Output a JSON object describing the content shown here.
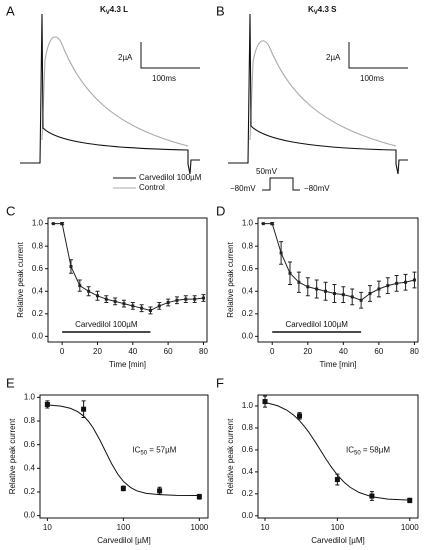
{
  "top_panels": [
    {
      "label": "A",
      "title": {
        "main": "K",
        "sub": "V",
        "rest": "4.3 L"
      },
      "scale_y": "2µA",
      "scale_x": "100ms"
    },
    {
      "label": "B",
      "title": {
        "main": "K",
        "sub": "V",
        "rest": "4.3 S"
      },
      "scale_y": "2µA",
      "scale_x": "100ms"
    }
  ],
  "legend": [
    "Carvedilol 100µM",
    "Control"
  ],
  "protocol": [
    "50mV",
    "−80mV",
    "−80mV"
  ],
  "chart_data": [
    {
      "type": "line",
      "panel": "C",
      "x_label": "Time [min]",
      "y_label": "Relative peak current",
      "x": [
        -5,
        0,
        5,
        10,
        15,
        20,
        25,
        30,
        35,
        40,
        45,
        50,
        55,
        60,
        65,
        70,
        75,
        80
      ],
      "values": [
        1.0,
        1.0,
        0.62,
        0.45,
        0.4,
        0.36,
        0.33,
        0.31,
        0.29,
        0.27,
        0.25,
        0.23,
        0.27,
        0.3,
        0.32,
        0.33,
        0.33,
        0.34
      ],
      "errors": [
        0,
        0.01,
        0.06,
        0.05,
        0.04,
        0.04,
        0.03,
        0.03,
        0.03,
        0.03,
        0.03,
        0.03,
        0.03,
        0.03,
        0.03,
        0.03,
        0.03,
        0.03
      ],
      "color": "#222222",
      "xlim": [
        -8,
        82
      ],
      "xticks": [
        0,
        20,
        40,
        60,
        80
      ],
      "ylim": [
        -0.05,
        1.05
      ],
      "yticks": [
        {
          "value": 0,
          "label": "0.0"
        },
        0.2,
        0.4,
        0.6,
        0.8,
        {
          "value": 1,
          "label": "1.0"
        }
      ],
      "application": {
        "label": "Carvedilol 100µM",
        "start": 0,
        "end": 50
      }
    },
    {
      "type": "line",
      "panel": "D",
      "x_label": "Time [min]",
      "y_label": "Relative peak current",
      "x": [
        -5,
        0,
        5,
        10,
        15,
        20,
        25,
        30,
        35,
        40,
        45,
        50,
        55,
        60,
        65,
        70,
        75,
        80
      ],
      "values": [
        1.0,
        1.0,
        0.74,
        0.56,
        0.48,
        0.44,
        0.42,
        0.4,
        0.38,
        0.37,
        0.35,
        0.32,
        0.38,
        0.42,
        0.45,
        0.47,
        0.48,
        0.5
      ],
      "errors": [
        0,
        0.01,
        0.1,
        0.1,
        0.09,
        0.08,
        0.08,
        0.08,
        0.08,
        0.07,
        0.07,
        0.07,
        0.07,
        0.07,
        0.07,
        0.07,
        0.07,
        0.07
      ],
      "color": "#222222",
      "xlim": [
        -8,
        82
      ],
      "xticks": [
        0,
        20,
        40,
        60,
        80
      ],
      "ylim": [
        -0.05,
        1.05
      ],
      "yticks": [
        {
          "value": 0,
          "label": "0.0"
        },
        0.2,
        0.4,
        0.6,
        0.8,
        {
          "value": 1,
          "label": "1.0"
        }
      ],
      "application": {
        "label": "Carvedilol 100µM",
        "start": 0,
        "end": 50
      }
    },
    {
      "type": "dose",
      "panel": "E",
      "x_label": "Carvedilol [µM]",
      "y_label": "Relative peak current",
      "log_x": true,
      "x": [
        10,
        30,
        100,
        300,
        1000
      ],
      "values": [
        0.94,
        0.9,
        0.23,
        0.21,
        0.16
      ],
      "errors": [
        0.03,
        0.07,
        0.02,
        0.03,
        0.02
      ],
      "fit": {
        "x": [
          10,
          15,
          20,
          25,
          30,
          35,
          40,
          50,
          57,
          70,
          85,
          100,
          125,
          150,
          200,
          300,
          500,
          1000
        ],
        "values": [
          0.936,
          0.926,
          0.908,
          0.88,
          0.842,
          0.795,
          0.742,
          0.63,
          0.555,
          0.44,
          0.348,
          0.29,
          0.237,
          0.21,
          0.188,
          0.178,
          0.171,
          0.17
        ]
      },
      "annotation": {
        "main": "IC",
        "sub": "50",
        "rest": " = 57µM"
      },
      "color": "#111111",
      "xlim": [
        8,
        1300
      ],
      "xticks": [
        10,
        100,
        1000
      ],
      "ylim": [
        -0.02,
        1.02
      ],
      "yticks": [
        {
          "value": 0,
          "label": "0.0"
        },
        0.2,
        0.4,
        0.6,
        0.8,
        {
          "value": 1,
          "label": "1.0"
        }
      ]
    },
    {
      "type": "dose",
      "panel": "F",
      "x_label": "Carvedilol [µM]",
      "y_label": "Relative peak current",
      "log_x": true,
      "x": [
        10,
        30,
        100,
        300,
        1000
      ],
      "values": [
        1.04,
        0.91,
        0.33,
        0.18,
        0.14
      ],
      "errors": [
        0.05,
        0.03,
        0.05,
        0.04,
        0.02
      ],
      "fit": {
        "x": [
          10,
          15,
          20,
          25,
          30,
          35,
          40,
          50,
          57,
          70,
          85,
          100,
          125,
          150,
          200,
          300,
          500,
          1000
        ],
        "values": [
          1.033,
          1.002,
          0.962,
          0.916,
          0.866,
          0.814,
          0.764,
          0.668,
          0.608,
          0.514,
          0.432,
          0.372,
          0.303,
          0.26,
          0.212,
          0.173,
          0.152,
          0.143
        ]
      },
      "annotation": {
        "main": "IC",
        "sub": "50",
        "rest": " = 58µM"
      },
      "color": "#111111",
      "xlim": [
        8,
        1300
      ],
      "xticks": [
        10,
        100,
        1000
      ],
      "ylim": [
        -0.02,
        1.1
      ],
      "yticks": [
        {
          "value": 0,
          "label": "0.0"
        },
        0.2,
        0.4,
        0.6,
        0.8,
        {
          "value": 1,
          "label": "1.0"
        }
      ]
    }
  ]
}
